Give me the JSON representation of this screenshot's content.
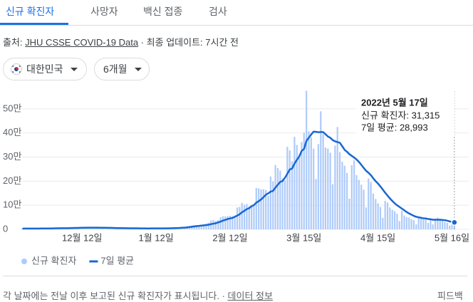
{
  "tabs": [
    "신규 확진자",
    "사망자",
    "백신 접종",
    "검사"
  ],
  "source": {
    "label": "출처:",
    "link": "JHU CSSE COVID-19 Data",
    "updated": "· 최종 업데이트: 7시간 전"
  },
  "filters": [
    "대한민국",
    "6개월"
  ],
  "chart_data": {
    "type": "bar",
    "categories": [
      null,
      null,
      null,
      null,
      null,
      null,
      null,
      null,
      null,
      null,
      null,
      null,
      null,
      null,
      null,
      null,
      null,
      null,
      null,
      null,
      null,
      null,
      null,
      null,
      null,
      "12월 12일",
      null,
      null,
      null,
      null,
      null,
      null,
      null,
      null,
      null,
      null,
      null,
      null,
      null,
      null,
      null,
      null,
      null,
      null,
      null,
      null,
      null,
      null,
      null,
      null,
      null,
      null,
      null,
      null,
      null,
      null,
      "1월 12일",
      null,
      null,
      null,
      null,
      null,
      null,
      null,
      null,
      null,
      null,
      null,
      null,
      null,
      null,
      null,
      null,
      null,
      null,
      null,
      null,
      null,
      null,
      null,
      null,
      null,
      null,
      null,
      null,
      null,
      null,
      "2월 12일",
      null,
      null,
      null,
      null,
      null,
      null,
      null,
      null,
      null,
      null,
      null,
      null,
      null,
      null,
      null,
      null,
      null,
      null,
      null,
      null,
      null,
      null,
      null,
      null,
      null,
      null,
      null,
      null,
      null,
      null,
      "3월 15일",
      null,
      null,
      null,
      null,
      null,
      null,
      null,
      null,
      null,
      null,
      null,
      null,
      null,
      null,
      null,
      null,
      null,
      null,
      null,
      null,
      null,
      null,
      null,
      null,
      null,
      null,
      null,
      null,
      null,
      null,
      "4월 15일",
      null,
      null,
      null,
      null,
      null,
      null,
      null,
      null,
      null,
      null,
      null,
      null,
      null,
      null,
      null,
      null,
      null,
      null,
      null,
      null,
      null,
      null,
      null,
      null,
      null,
      null,
      null,
      null,
      null,
      null,
      "5월 16일",
      null
    ],
    "series": [
      {
        "name": "신규 확진자",
        "type": "bar",
        "color": "#aecbfa",
        "values": [
          3187,
          3292,
          3034,
          3206,
          2827,
          2699,
          4115,
          4116,
          3938,
          3899,
          3928,
          3308,
          3032,
          5123,
          5266,
          4944,
          5352,
          5128,
          4325,
          4954,
          7175,
          7102,
          7022,
          6977,
          6689,
          5817,
          5567,
          7850,
          7622,
          7435,
          7314,
          6236,
          5318,
          5202,
          7456,
          6919,
          6233,
          5842,
          5419,
          4207,
          3865,
          5409,
          5037,
          4873,
          4416,
          3833,
          3129,
          4443,
          4204,
          3718,
          4126,
          3713,
          3376,
          3007,
          4388,
          4167,
          4542,
          4193,
          4423,
          4048,
          3859,
          5804,
          5805,
          6603,
          6769,
          7009,
          7628,
          7513,
          8571,
          13012,
          14518,
          16096,
          17542,
          17079,
          17532,
          18342,
          20270,
          22907,
          27443,
          36362,
          38691,
          35286,
          38867,
          49567,
          54122,
          53926,
          54941,
          56431,
          54619,
          57177,
          90443,
          93135,
          109831,
          102211,
          104829,
          95362,
          95610,
          99573,
          171452,
          170016,
          165890,
          166722,
          163566,
          139626,
          219241,
          198803,
          266853,
          254327,
          243628,
          210716,
          202721,
          342446,
          327549,
          282987,
          383665,
          350190,
          309790,
          362338,
          400741,
          575000,
          407017,
          381454,
          334708,
          209169,
          353980,
          490000,
          395598,
          339514,
          335580,
          318130,
          187213,
          347554,
          424641,
          320743,
          280273,
          264171,
          234301,
          127190,
          266135,
          286294,
          224820,
          205333,
          185566,
          164481,
          90928,
          210755,
          195419,
          148443,
          125846,
          107916,
          93001,
          47743,
          118504,
          111319,
          90867,
          81058,
          75449,
          64725,
          34370,
          76787,
          57464,
          50568,
          49064,
          43286,
          37771,
          20601,
          51131,
          49933,
          42296,
          40064,
          26714,
          38446,
          20578,
          43926,
          49078,
          43908,
          35906,
          29581,
          26714,
          15358,
          29581,
          31315
        ]
      },
      {
        "name": "7일 평균",
        "type": "line",
        "color": "#1967d2",
        "values": [
          3100,
          3150,
          3200,
          3250,
          3200,
          3150,
          3300,
          3450,
          3550,
          3650,
          3800,
          3850,
          3800,
          4000,
          4300,
          4500,
          4700,
          4850,
          4900,
          4950,
          5300,
          5550,
          5800,
          6050,
          6400,
          6650,
          6750,
          6900,
          7000,
          7050,
          7100,
          7000,
          6850,
          6650,
          6650,
          6600,
          6450,
          6250,
          6000,
          5600,
          5250,
          5150,
          5000,
          4850,
          4800,
          4600,
          4450,
          4400,
          4250,
          4100,
          4000,
          3900,
          3830,
          3800,
          3900,
          3950,
          4000,
          4050,
          4060,
          4100,
          4100,
          4350,
          4600,
          4950,
          5250,
          5550,
          6000,
          6700,
          7200,
          8200,
          9300,
          10600,
          12100,
          13300,
          14300,
          15600,
          16600,
          17800,
          19100,
          21600,
          23400,
          25200,
          28600,
          32000,
          36300,
          39500,
          42800,
          45200,
          47400,
          52100,
          57100,
          62500,
          70900,
          77100,
          83900,
          88000,
          96100,
          100800,
          110500,
          116900,
          124000,
          133300,
          143500,
          149500,
          156500,
          159400,
          173200,
          185000,
          196700,
          200700,
          213900,
          230700,
          248400,
          252500,
          272400,
          288300,
          302700,
          325200,
          333700,
          366800,
          380100,
          393600,
          405400,
          404800,
          402900,
          404000,
          403500,
          394700,
          385400,
          380000,
          370600,
          365400,
          362400,
          359300,
          345100,
          330000,
          322000,
          312000,
          305000,
          298000,
          290000,
          280000,
          268000,
          255000,
          243000,
          235000,
          225000,
          212000,
          200000,
          190000,
          178000,
          165000,
          152000,
          140000,
          128000,
          118000,
          108000,
          100000,
          93000,
          86000,
          79000,
          72000,
          66000,
          61000,
          56000,
          52000,
          50000,
          48000,
          46000,
          45000,
          43000,
          42000,
          40000,
          40000,
          40000,
          40000,
          39000,
          38000,
          36000,
          33000,
          31000,
          28993
        ]
      }
    ],
    "ylim": [
      0,
      600000
    ],
    "yticks": [
      0,
      {
        "value": 100000,
        "label": "10만"
      },
      {
        "value": 200000,
        "label": "20만"
      },
      {
        "value": 300000,
        "label": "30만"
      },
      {
        "value": 400000,
        "label": "40만"
      },
      {
        "value": 500000,
        "label": "50만"
      }
    ],
    "grid": true,
    "tooltip": {
      "title": "2022년 5월 17일",
      "lines": [
        "신규 확진자: 31,315",
        "7일 평균: 28,993"
      ]
    }
  },
  "footer": {
    "note": "각 날짜에는 전날 이후 보고된 신규 확진자가 표시됩니다. ·",
    "link": "데이터 정보",
    "feedback": "피드백"
  }
}
